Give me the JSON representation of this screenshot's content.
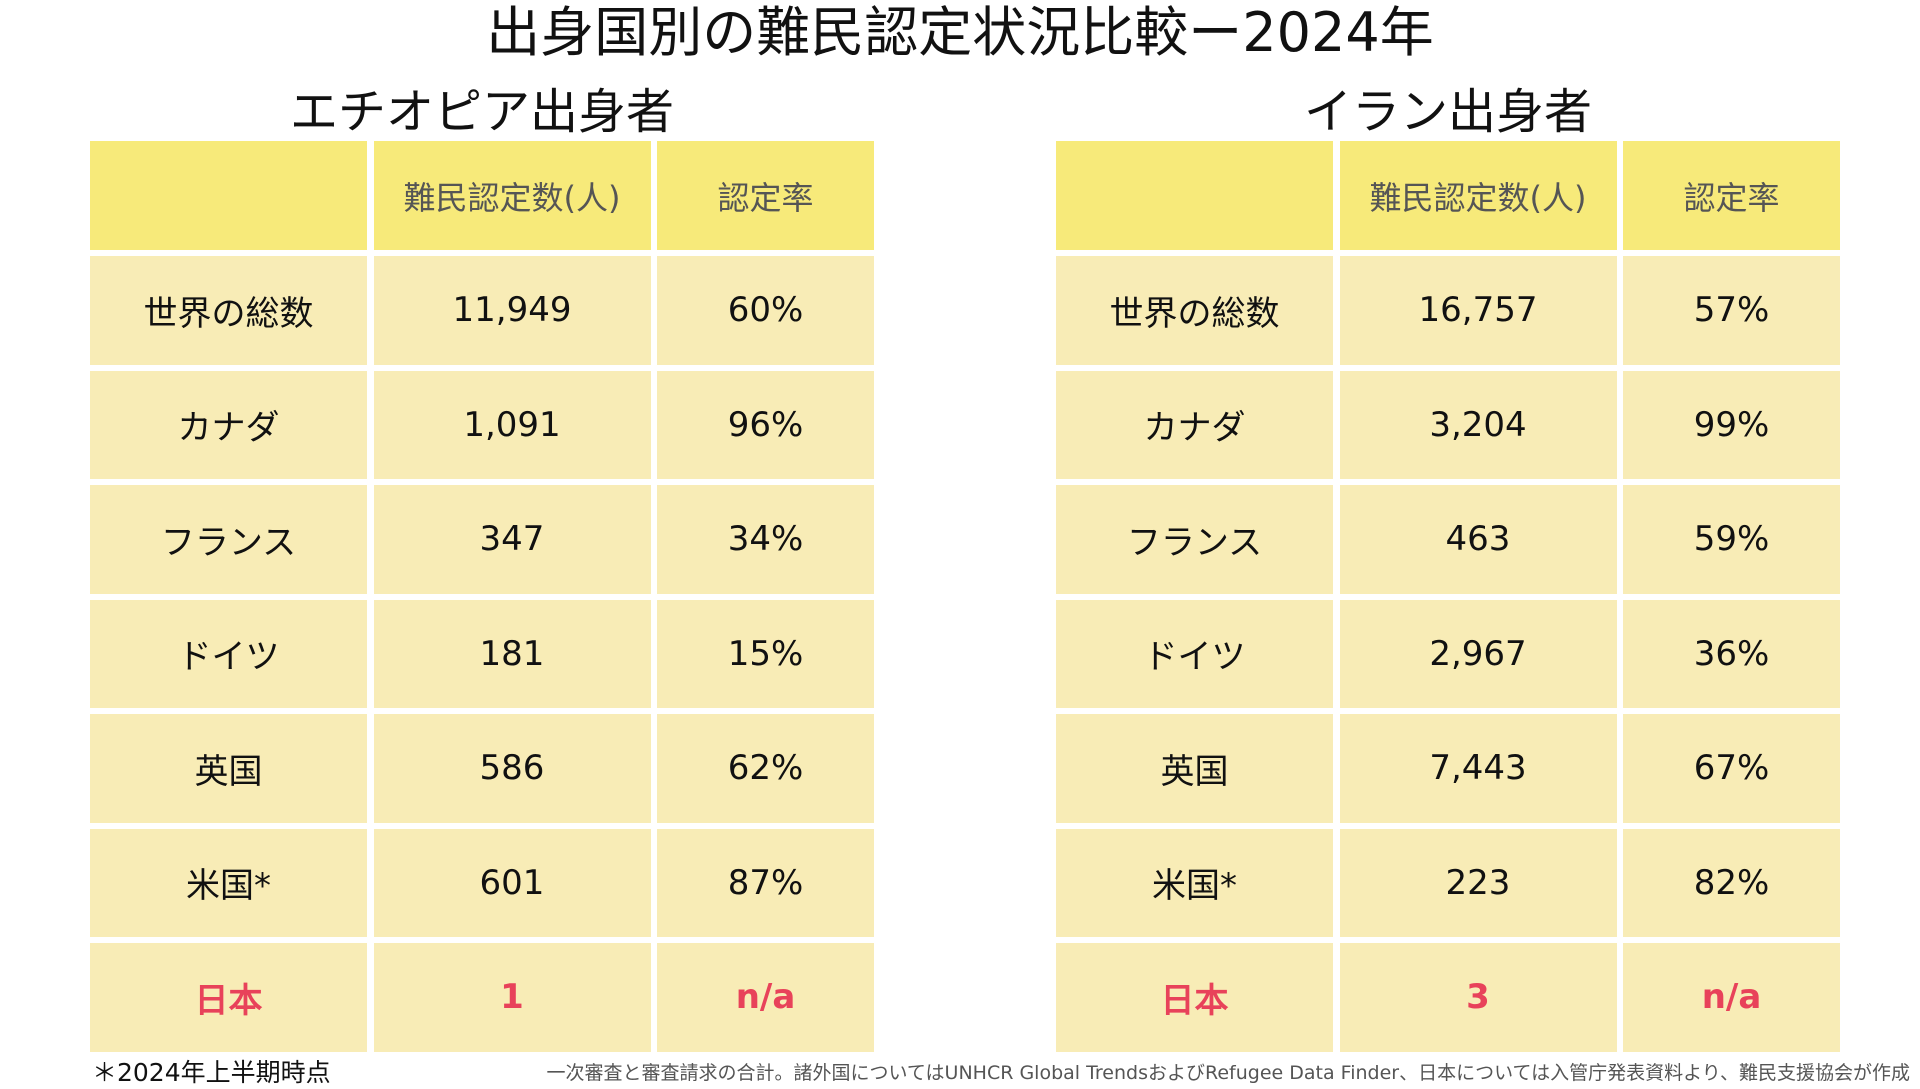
{
  "title": "出身国別の難民認定状況比較ー2024年",
  "headers": {
    "count": "難民認定数(人)",
    "rate": "認定率"
  },
  "tables": [
    {
      "subtitle": "エチオピア出身者",
      "rows": [
        {
          "country": "世界の総数",
          "count": "11,949",
          "rate": "60%"
        },
        {
          "country": "カナダ",
          "count": "1,091",
          "rate": "96%"
        },
        {
          "country": "フランス",
          "count": "347",
          "rate": "34%"
        },
        {
          "country": "ドイツ",
          "count": "181",
          "rate": "15%"
        },
        {
          "country": "英国",
          "count": "586",
          "rate": "62%"
        },
        {
          "country": "米国*",
          "count": "601",
          "rate": "87%"
        },
        {
          "country": "日本",
          "count": "1",
          "rate": "n/a"
        }
      ]
    },
    {
      "subtitle": "イラン出身者",
      "rows": [
        {
          "country": "世界の総数",
          "count": "16,757",
          "rate": "57%"
        },
        {
          "country": "カナダ",
          "count": "3,204",
          "rate": "99%"
        },
        {
          "country": "フランス",
          "count": "463",
          "rate": "59%"
        },
        {
          "country": "ドイツ",
          "count": "2,967",
          "rate": "36%"
        },
        {
          "country": "英国",
          "count": "7,443",
          "rate": "67%"
        },
        {
          "country": "米国*",
          "count": "223",
          "rate": "82%"
        },
        {
          "country": "日本",
          "count": "3",
          "rate": "n/a"
        }
      ]
    }
  ],
  "footnote": "＊2024年上半期時点",
  "source": "一次審査と審査請求の合計。諸外国についてはUNHCR Global TrendsおよびRefugee Data Finder、日本については入管庁発表資料より、難民支援協会が作成",
  "colors": {
    "header": "#F7EA7A",
    "cell": "#F8ECB6",
    "highlight": "#E8425A"
  }
}
